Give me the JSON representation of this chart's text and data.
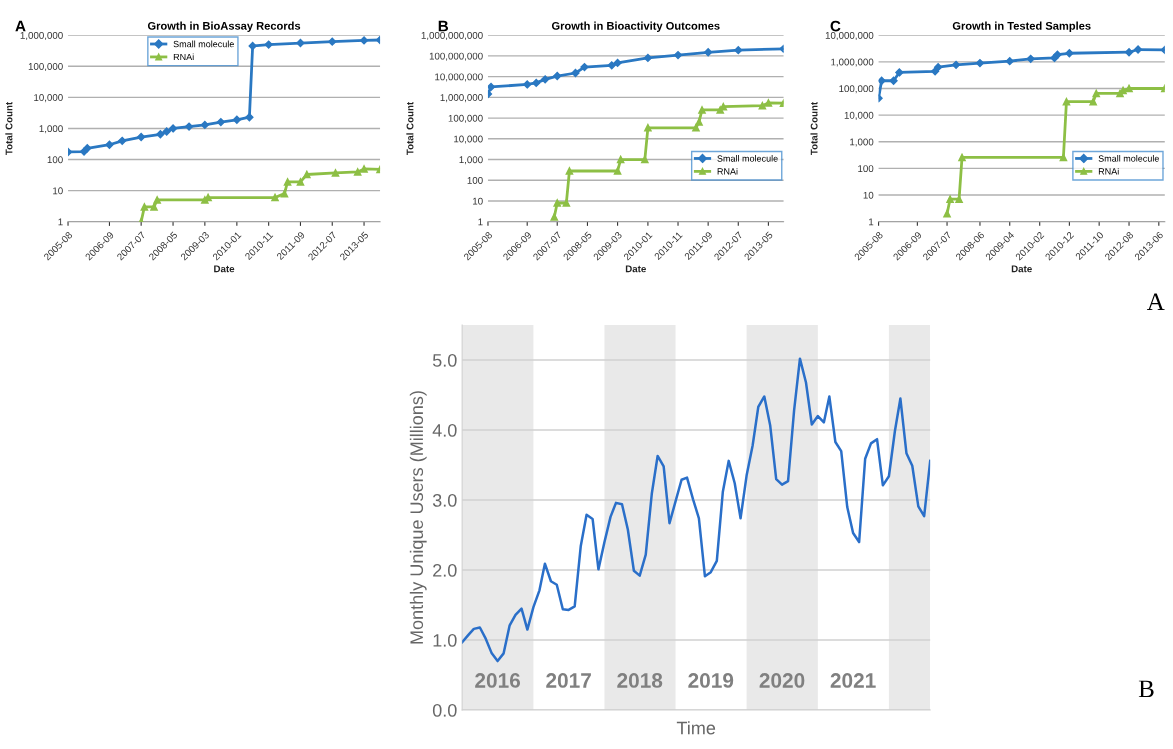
{
  "chart_data": [
    {
      "type": "line",
      "title": "Growth in BioAssay Records",
      "xlabel": "Date",
      "ylabel": "Total Count",
      "annotations": [
        "A"
      ],
      "log": "y",
      "grid": "y",
      "legend": "top left",
      "xlim": [
        "2005-08",
        "2013-10"
      ],
      "xticks": [
        "2005-08",
        "2006-09",
        "2007-07",
        "2008-05",
        "2009-03",
        "2010-01",
        "2010-11",
        "2011-09",
        "2012-07",
        "2013-05"
      ],
      "ylim": [
        1,
        1000000
      ],
      "yticks": [
        {
          "value": 1,
          "label": "1"
        },
        {
          "value": 10,
          "label": "10"
        },
        {
          "value": 100,
          "label": "100"
        },
        {
          "value": 1000,
          "label": "1,000"
        },
        {
          "value": 10000,
          "label": "10,000"
        },
        {
          "value": 100000,
          "label": "100,000"
        },
        {
          "value": 1000000,
          "label": "1,000,000"
        }
      ],
      "series": [
        {
          "name": "Small molecule",
          "color": "#2a78c2",
          "marker": "diamond",
          "x": [
            "2005-08",
            "2006-01",
            "2006-02",
            "2006-09",
            "2007-01",
            "2007-07",
            "2008-01",
            "2008-03",
            "2008-05",
            "2008-10",
            "2009-03",
            "2009-08",
            "2010-01",
            "2010-05",
            "2010-06",
            "2010-11",
            "2011-09",
            "2012-07",
            "2013-05",
            "2013-10"
          ],
          "values": [
            175,
            180,
            230,
            300,
            400,
            530,
            650,
            800,
            1000,
            1150,
            1300,
            1600,
            1900,
            2300,
            450000,
            500000,
            560000,
            620000,
            680000,
            700000
          ]
        },
        {
          "name": "RNAi",
          "color": "#8dbf45",
          "marker": "triangle",
          "x": [
            "2007-07",
            "2007-08",
            "2007-11",
            "2007-12",
            "2009-03",
            "2009-04",
            "2011-01",
            "2011-04",
            "2011-05",
            "2011-09",
            "2011-11",
            "2012-08",
            "2013-03",
            "2013-05",
            "2013-10"
          ],
          "values": [
            1,
            3,
            3,
            5,
            5,
            6,
            6,
            8,
            19,
            19,
            33,
            37,
            40,
            50,
            48
          ]
        }
      ]
    },
    {
      "type": "line",
      "title": "Growth in Bioactivity Outcomes",
      "xlabel": "Date",
      "ylabel": "Total Count",
      "annotations": [
        "B"
      ],
      "log": "y",
      "grid": "y",
      "legend": "right",
      "xlim": [
        "2005-08",
        "2013-10"
      ],
      "xticks": [
        "2005-08",
        "2006-09",
        "2007-07",
        "2008-05",
        "2009-03",
        "2010-01",
        "2010-11",
        "2011-09",
        "2012-07",
        "2013-05"
      ],
      "ylim": [
        1,
        1000000000
      ],
      "yticks": [
        {
          "value": 1,
          "label": "1"
        },
        {
          "value": 10,
          "label": "10"
        },
        {
          "value": 100,
          "label": "100"
        },
        {
          "value": 1000,
          "label": "1,000"
        },
        {
          "value": 10000,
          "label": "10,000"
        },
        {
          "value": 100000,
          "label": "100,000"
        },
        {
          "value": 1000000,
          "label": "1,000,000"
        },
        {
          "value": 10000000,
          "label": "10,000,000"
        },
        {
          "value": 100000000,
          "label": "100,000,000"
        },
        {
          "value": 1000000000,
          "label": "1,000,000,000"
        }
      ],
      "series": [
        {
          "name": "Small molecule",
          "color": "#2a78c2",
          "marker": "diamond",
          "x": [
            "2005-08",
            "2005-09",
            "2006-09",
            "2006-12",
            "2007-03",
            "2007-07",
            "2008-01",
            "2008-04",
            "2009-01",
            "2009-03",
            "2010-01",
            "2010-11",
            "2011-09",
            "2012-07",
            "2013-10"
          ],
          "values": [
            1450000,
            3200000,
            4200000,
            5000000,
            7400000,
            10700000,
            15000000,
            29000000,
            35000000,
            46000000,
            80000000,
            110000000,
            150000000,
            190000000,
            220000000
          ]
        },
        {
          "name": "RNAi",
          "color": "#8dbf45",
          "marker": "triangle",
          "x": [
            "2007-06",
            "2007-07",
            "2007-10",
            "2007-11",
            "2009-03",
            "2009-04",
            "2009-12",
            "2010-01",
            "2011-05",
            "2011-06",
            "2011-07",
            "2012-01",
            "2012-02",
            "2013-03",
            "2013-05",
            "2013-10"
          ],
          "values": [
            1.7,
            8,
            8,
            280,
            280,
            1000,
            1000,
            34000,
            34000,
            66000,
            250000,
            250000,
            360000,
            400000,
            540000,
            530000
          ]
        }
      ]
    },
    {
      "type": "line",
      "title": "Growth in Tested Samples",
      "xlabel": "Date",
      "ylabel": "Total Count",
      "annotations": [
        "C",
        "A"
      ],
      "log": "y",
      "grid": "y",
      "legend": "right",
      "xlim": [
        "2005-08",
        "2013-08"
      ],
      "xticks": [
        "2005-08",
        "2006-09",
        "2007-07",
        "2008-06",
        "2009-04",
        "2010-02",
        "2010-12",
        "2011-10",
        "2012-08",
        "2013-06"
      ],
      "ylim": [
        1,
        10000000
      ],
      "yticks": [
        {
          "value": 1,
          "label": "1"
        },
        {
          "value": 10,
          "label": "10"
        },
        {
          "value": 100,
          "label": "100"
        },
        {
          "value": 1000,
          "label": "1,000"
        },
        {
          "value": 10000,
          "label": "10,000"
        },
        {
          "value": 100000,
          "label": "100,000"
        },
        {
          "value": 1000000,
          "label": "1,000,000"
        },
        {
          "value": 10000000,
          "label": "10,000,000"
        }
      ],
      "series": [
        {
          "name": "Small molecule",
          "color": "#2a78c2",
          "marker": "diamond",
          "x": [
            "2005-08",
            "2005-09",
            "2006-01",
            "2006-03",
            "2007-03",
            "2007-04",
            "2007-10",
            "2008-06",
            "2009-04",
            "2009-11",
            "2010-07",
            "2010-08",
            "2010-12",
            "2012-08",
            "2012-11",
            "2013-08"
          ],
          "values": [
            43000,
            195000,
            195000,
            400000,
            440000,
            630000,
            770000,
            900000,
            1060000,
            1300000,
            1400000,
            1850000,
            2100000,
            2300000,
            2900000,
            2800000
          ]
        },
        {
          "name": "RNAi",
          "color": "#8dbf45",
          "marker": "triangle",
          "x": [
            "2007-07",
            "2007-08",
            "2007-11",
            "2007-12",
            "2010-10",
            "2010-11",
            "2011-08",
            "2011-09",
            "2012-05",
            "2012-06",
            "2012-08",
            "2013-08"
          ],
          "values": [
            2,
            7,
            7,
            260,
            260,
            32000,
            32000,
            65000,
            65000,
            85000,
            100000,
            100000
          ]
        }
      ]
    },
    {
      "type": "line",
      "xlabel": "Time",
      "ylabel": "Monthly Unique Users (Millions)",
      "annotations": [
        "B"
      ],
      "grid": "y",
      "xlim": [
        "2016-01",
        "2022-08"
      ],
      "ylim": [
        0,
        5.5
      ],
      "xticks": [
        {
          "value": "2016-07",
          "label": "2016"
        },
        {
          "value": "2017-07",
          "label": "2017"
        },
        {
          "value": "2018-07",
          "label": "2018"
        },
        {
          "value": "2019-07",
          "label": "2019"
        },
        {
          "value": "2020-07",
          "label": "2020"
        },
        {
          "value": "2021-07",
          "label": "2021"
        }
      ],
      "yticks": [
        {
          "value": 0,
          "label": "0.0"
        },
        {
          "value": 1,
          "label": "1.0"
        },
        {
          "value": 2,
          "label": "2.0"
        },
        {
          "value": 3,
          "label": "3.0"
        },
        {
          "value": 4,
          "label": "4.0"
        },
        {
          "value": 5,
          "label": "5.0"
        }
      ],
      "bands": [
        {
          "axis": "x",
          "from": "2016-01",
          "to": "2017-01",
          "color": "#e9e9e9"
        },
        {
          "axis": "x",
          "from": "2018-01",
          "to": "2019-01",
          "color": "#e9e9e9"
        },
        {
          "axis": "x",
          "from": "2020-01",
          "to": "2021-01",
          "color": "#e9e9e9"
        },
        {
          "axis": "x",
          "from": "2022-01",
          "to": "2022-08",
          "color": "#e9e9e9"
        }
      ],
      "series": [
        {
          "color": "#2a6fc9",
          "x": [
            "2016-01",
            "2016-02",
            "2016-03",
            "2016-04",
            "2016-05",
            "2016-06",
            "2016-07",
            "2016-08",
            "2016-09",
            "2016-10",
            "2016-11",
            "2016-12",
            "2017-01",
            "2017-02",
            "2017-03",
            "2017-04",
            "2017-05",
            "2017-06",
            "2017-07",
            "2017-08",
            "2017-09",
            "2017-10",
            "2017-11",
            "2017-12",
            "2018-01",
            "2018-02",
            "2018-03",
            "2018-04",
            "2018-05",
            "2018-06",
            "2018-07",
            "2018-08",
            "2018-09",
            "2018-10",
            "2018-11",
            "2018-12",
            "2019-01",
            "2019-02",
            "2019-03",
            "2019-04",
            "2019-05",
            "2019-06",
            "2019-07",
            "2019-08",
            "2019-09",
            "2019-10",
            "2019-11",
            "2019-12",
            "2020-01",
            "2020-02",
            "2020-03",
            "2020-04",
            "2020-05",
            "2020-06",
            "2020-07",
            "2020-08",
            "2020-09",
            "2020-10",
            "2020-11",
            "2020-12",
            "2021-01",
            "2021-02",
            "2021-03",
            "2021-04",
            "2021-05",
            "2021-06",
            "2021-07",
            "2021-08",
            "2021-09",
            "2021-10",
            "2021-11",
            "2021-12",
            "2022-01",
            "2022-02",
            "2022-03",
            "2022-04",
            "2022-05",
            "2022-06",
            "2022-07",
            "2022-08"
          ],
          "values": [
            0.97,
            1.07,
            1.16,
            1.18,
            1.02,
            0.81,
            0.7,
            0.81,
            1.21,
            1.36,
            1.45,
            1.15,
            1.47,
            1.71,
            2.09,
            1.84,
            1.79,
            1.44,
            1.43,
            1.48,
            2.34,
            2.79,
            2.73,
            2.01,
            2.4,
            2.76,
            2.96,
            2.94,
            2.58,
            1.99,
            1.92,
            2.22,
            3.09,
            3.63,
            3.48,
            2.67,
            2.98,
            3.29,
            3.32,
            3.01,
            2.74,
            1.91,
            1.97,
            2.13,
            3.12,
            3.56,
            3.24,
            2.74,
            3.35,
            3.78,
            4.33,
            4.48,
            4.07,
            3.3,
            3.22,
            3.27,
            4.28,
            5.02,
            4.68,
            4.08,
            4.2,
            4.11,
            4.48,
            3.83,
            3.7,
            2.9,
            2.53,
            2.4,
            3.59,
            3.81,
            3.87,
            3.21,
            3.34,
            3.99,
            4.45,
            3.67,
            3.49,
            2.91,
            2.77,
            3.56
          ]
        }
      ]
    }
  ]
}
